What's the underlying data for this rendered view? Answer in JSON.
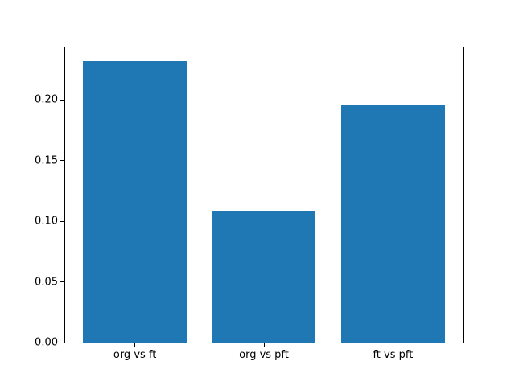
{
  "figure": {
    "background": "#ffffff",
    "text_color": "#000000",
    "spine_color": "#000000"
  },
  "chart_data": {
    "type": "bar",
    "title": "",
    "xlabel": "",
    "ylabel": "",
    "categories": [
      "org vs ft",
      "org vs pft",
      "ft vs pft"
    ],
    "values": [
      0.232,
      0.108,
      0.196
    ],
    "bar_color": "#1f77b4",
    "bar_width": 0.8,
    "xlim": [
      -0.54,
      2.54
    ],
    "ylim": [
      0,
      0.2434
    ],
    "yticks": [
      0.0,
      0.05,
      0.1,
      0.15,
      0.2
    ],
    "ytick_labels": [
      "0.00",
      "0.05",
      "0.10",
      "0.15",
      "0.20"
    ],
    "grid": false,
    "legend_position": "none"
  }
}
